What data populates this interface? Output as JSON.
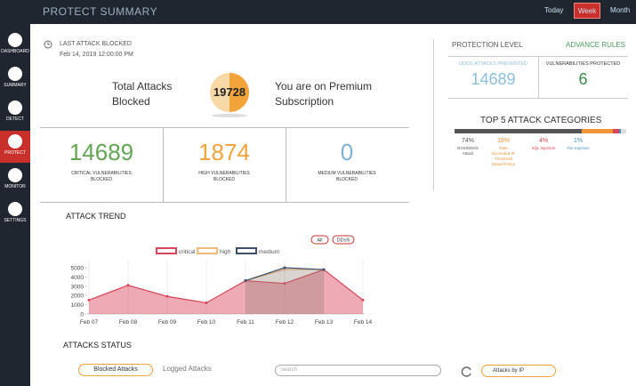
{
  "header": {
    "title": "PROTECT SUMMARY",
    "ranges": [
      "Today",
      "Week",
      "Month"
    ],
    "active_range": 1
  },
  "sidebar": {
    "items": [
      "DASHBOARD",
      "SUMMARY",
      "DETECT",
      "PROTECT",
      "MONITOR",
      "SETTINGS"
    ],
    "active": 3
  },
  "last_attack": {
    "label": "LAST ATTACK BLOCKED",
    "time": "Feb 14, 2019 12:00:00 PM"
  },
  "total": {
    "label": "Total Attacks Blocked",
    "value": 19728,
    "subscription": "You are on Premium Subscription"
  },
  "stats": [
    {
      "value": 14689,
      "label": "CRITICAL VULNERABILITIES BLOCKED",
      "color": "#62a552"
    },
    {
      "value": 1874,
      "label": "HIGH VULNERABILITIES BLOCKED",
      "color": "#f2a33a"
    },
    {
      "value": 0,
      "label": "MEDIUM VULNERABILITIES BLOCKED",
      "color": "#7fb3d5"
    }
  ],
  "protection": {
    "title": "PROTECTION LEVEL",
    "link": "ADVANCE RULES",
    "items": [
      {
        "label": "DDOS ATTACKS PREVENTED",
        "value": 14689,
        "color": "#8dbfdc"
      },
      {
        "label": "VULNERABILITIES PROTECTED",
        "value": 6,
        "color": "#3a8a4a"
      }
    ]
  },
  "top5": {
    "title": "TOP 5 ATTACK CATEGORIES",
    "items": [
      {
        "value": 74,
        "label": "74%",
        "name": "DOS/DDOS Attack",
        "color": "#555555"
      },
      {
        "value": 18,
        "label": "18%",
        "name": "Rate Exceeded IP Threshold Based Policy",
        "color": "#f0953a"
      },
      {
        "value": 4,
        "label": "4%",
        "name": "SQL Injection",
        "color": "#d9455b"
      },
      {
        "value": 1,
        "label": "1%",
        "name": "File Injection",
        "color": "#4a90c2"
      }
    ]
  },
  "chart_data": {
    "type": "line",
    "title": "ATTACK TREND",
    "filters": [
      "All",
      "DDoS"
    ],
    "categories": [
      "Feb 07",
      "Feb 08",
      "Feb 09",
      "Feb 10",
      "Feb 11",
      "Feb 12",
      "Feb 13",
      "Feb 14"
    ],
    "series": [
      {
        "name": "critical",
        "color": "#d9455b",
        "values": [
          1500,
          3100,
          1900,
          1200,
          3600,
          3300,
          4800,
          1500
        ]
      },
      {
        "name": "high",
        "color": "#f5b97a",
        "values": [
          null,
          null,
          null,
          null,
          3600,
          4800,
          4800,
          null
        ]
      },
      {
        "name": "medium",
        "color": "#3c4f6b",
        "values": [
          null,
          null,
          null,
          null,
          3600,
          5000,
          4800,
          null
        ]
      }
    ],
    "ylim": [
      0,
      5000
    ],
    "yticks": [
      0,
      1000,
      2000,
      3000,
      4000,
      5000
    ]
  },
  "status": {
    "title": "ATTACKS STATUS",
    "tabs": [
      "Blocked Attacks",
      "Logged Attacks"
    ],
    "search": "search",
    "dropdown": "Attacks by IP"
  }
}
